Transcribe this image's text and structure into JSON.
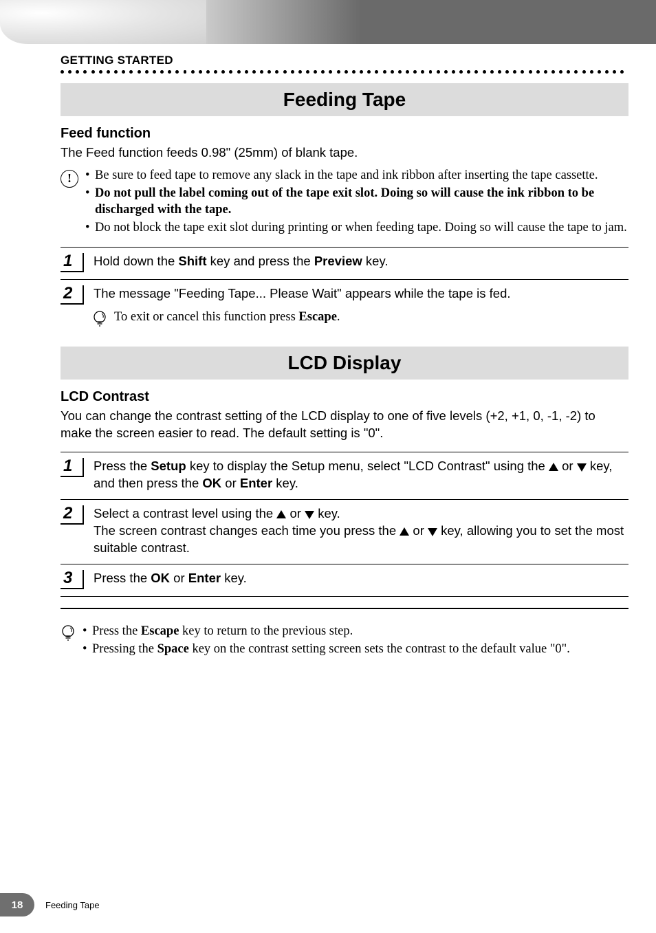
{
  "section_label": "GETTING STARTED",
  "title1": "Feeding Tape",
  "feed": {
    "heading": "Feed function",
    "intro": "The Feed function feeds 0.98\" (25mm) of blank tape.",
    "warnings": [
      {
        "text": "Be sure to feed tape to remove any slack in the tape and ink ribbon after inserting the tape cassette.",
        "bold": false
      },
      {
        "text": "Do not pull the label coming out of the tape exit slot. Doing so will cause the ink ribbon to be discharged with the tape.",
        "bold": true
      },
      {
        "text": "Do not block the tape exit slot during printing or when feeding tape. Doing so will cause the tape to jam.",
        "bold": false
      }
    ],
    "steps": [
      {
        "num": "1",
        "parts": [
          {
            "t": "Hold down the "
          },
          {
            "t": "Shift",
            "b": true
          },
          {
            "t": " key and press the "
          },
          {
            "t": "Preview",
            "b": true
          },
          {
            "t": " key."
          }
        ]
      },
      {
        "num": "2",
        "parts": [
          {
            "t": "The message \"Feeding Tape... Please Wait\" appears while the tape is fed."
          }
        ],
        "tip_parts": [
          {
            "t": "To exit or cancel this function press "
          },
          {
            "t": "Escape",
            "b": true
          },
          {
            "t": "."
          }
        ]
      }
    ]
  },
  "title2": "LCD Display",
  "lcd": {
    "heading": "LCD Contrast",
    "intro": "You can change the contrast setting of the LCD display to one of five levels (+2, +1, 0, -1, -2) to make the screen easier to read. The default setting is \"0\".",
    "steps": [
      {
        "num": "1",
        "pre": [
          {
            "t": "Press the "
          },
          {
            "t": "Setup",
            "b": true
          },
          {
            "t": " key to display the Setup menu, select \"LCD Contrast\" using the "
          }
        ],
        "post": [
          {
            "t": " key, and then press the "
          },
          {
            "t": "OK",
            "b": true
          },
          {
            "t": " or "
          },
          {
            "t": "Enter",
            "b": true
          },
          {
            "t": " key."
          }
        ],
        "arrows": "updown_or"
      },
      {
        "num": "2",
        "line1_pre": [
          {
            "t": "Select a contrast level using the "
          }
        ],
        "line1_post": [
          {
            "t": " key."
          }
        ],
        "line2_pre": [
          {
            "t": "The screen contrast changes each time you press the "
          }
        ],
        "line2_post": [
          {
            "t": " key, allowing you to set the most suitable contrast."
          }
        ],
        "arrows": "updown_or"
      },
      {
        "num": "3",
        "parts": [
          {
            "t": "Press the "
          },
          {
            "t": "OK",
            "b": true
          },
          {
            "t": " or "
          },
          {
            "t": "Enter",
            "b": true
          },
          {
            "t": " key."
          }
        ]
      }
    ],
    "tips": [
      [
        {
          "t": "Press the "
        },
        {
          "t": "Escape",
          "b": true
        },
        {
          "t": " key to return to the previous step."
        }
      ],
      [
        {
          "t": "Pressing the "
        },
        {
          "t": "Space",
          "b": true
        },
        {
          "t": " key on the contrast setting screen sets the contrast to the default value \"0\"."
        }
      ]
    ]
  },
  "footer": {
    "page": "18",
    "label": "Feeding Tape"
  },
  "colors": {
    "title_bg": "#dcdcdc",
    "band_dark": "#6a6a6a",
    "badge": "#6f6f6f"
  }
}
